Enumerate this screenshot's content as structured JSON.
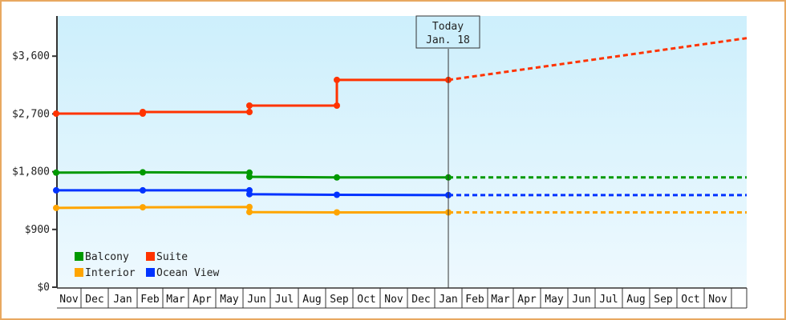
{
  "chart_data": {
    "type": "line",
    "title": "",
    "xlabel": "",
    "ylabel": "",
    "ylim": [
      0,
      4200
    ],
    "y_ticks": [
      {
        "value": 0,
        "label": "$0"
      },
      {
        "value": 900,
        "label": "$900"
      },
      {
        "value": 1800,
        "label": "$1,800"
      },
      {
        "value": 2700,
        "label": "$2,700"
      },
      {
        "value": 3600,
        "label": "$3,600"
      }
    ],
    "x_labels": [
      "Nov",
      "Dec",
      "Jan",
      "Feb",
      "Mar",
      "Apr",
      "May",
      "Jun",
      "Jul",
      "Aug",
      "Sep",
      "Oct",
      "Nov",
      "Dec",
      "Jan",
      "Feb",
      "Mar",
      "Apr",
      "May",
      "Jun",
      "Jul",
      "Aug",
      "Sep",
      "Oct",
      "Nov"
    ],
    "grid": false,
    "legend_position": "lower-left inside",
    "today_marker": {
      "line1": "Today",
      "line2": "Jan. 18",
      "x_label": "Jan"
    },
    "series": [
      {
        "name": "Balcony",
        "color": "#009900",
        "points": [
          {
            "x": "Nov",
            "y": 1785
          },
          {
            "x": "Feb",
            "y": 1790
          },
          {
            "x": "Jun",
            "y": 1785
          },
          {
            "x": "Jun",
            "y": 1720
          },
          {
            "x": "Sep",
            "y": 1710
          },
          {
            "x": "Jan (today)",
            "y": 1710
          }
        ],
        "projection": [
          {
            "x": "Jan (today)",
            "y": 1710
          },
          {
            "x": "Nov (end)",
            "y": 1710
          }
        ]
      },
      {
        "name": "Suite",
        "color": "#ff3300",
        "points": [
          {
            "x": "Nov",
            "y": 2705
          },
          {
            "x": "Feb",
            "y": 2705
          },
          {
            "x": "Feb",
            "y": 2730
          },
          {
            "x": "Jun",
            "y": 2730
          },
          {
            "x": "Jun",
            "y": 2830
          },
          {
            "x": "Sep",
            "y": 2830
          },
          {
            "x": "Sep",
            "y": 3230
          },
          {
            "x": "Jan (today)",
            "y": 3230
          }
        ],
        "projection": [
          {
            "x": "Jan (today)",
            "y": 3230
          },
          {
            "x": "Nov (end)",
            "y": 3880
          }
        ]
      },
      {
        "name": "Interior",
        "color": "#ffa500",
        "points": [
          {
            "x": "Nov",
            "y": 1235
          },
          {
            "x": "Feb",
            "y": 1245
          },
          {
            "x": "Jun",
            "y": 1250
          },
          {
            "x": "Jun",
            "y": 1170
          },
          {
            "x": "Sep",
            "y": 1165
          },
          {
            "x": "Jan (today)",
            "y": 1165
          }
        ],
        "projection": [
          {
            "x": "Jan (today)",
            "y": 1165
          },
          {
            "x": "Nov (end)",
            "y": 1165
          }
        ]
      },
      {
        "name": "Ocean View",
        "color": "#0033ff",
        "points": [
          {
            "x": "Nov",
            "y": 1510
          },
          {
            "x": "Feb",
            "y": 1510
          },
          {
            "x": "Jun",
            "y": 1510
          },
          {
            "x": "Jun",
            "y": 1450
          },
          {
            "x": "Sep",
            "y": 1440
          },
          {
            "x": "Jan (today)",
            "y": 1435
          }
        ],
        "projection": [
          {
            "x": "Jan (today)",
            "y": 1435
          },
          {
            "x": "Nov (end)",
            "y": 1435
          }
        ]
      }
    ]
  },
  "legend": [
    {
      "label": "Balcony",
      "color": "#009900"
    },
    {
      "label": "Suite",
      "color": "#ff3300"
    },
    {
      "label": "Interior",
      "color": "#ffa500"
    },
    {
      "label": "Ocean View",
      "color": "#0033ff"
    }
  ]
}
